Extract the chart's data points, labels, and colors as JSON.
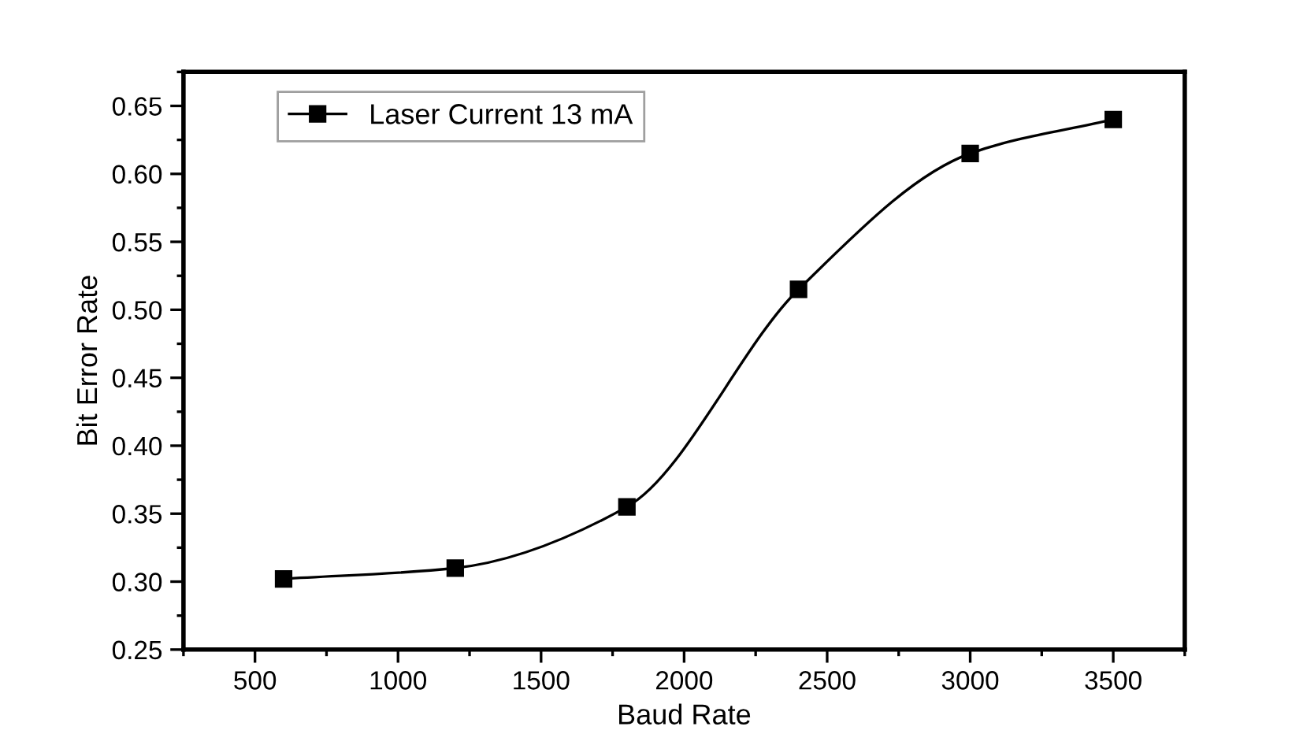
{
  "chart_data": {
    "type": "line",
    "xlabel": "Baud Rate",
    "ylabel": "Bit Error Rate",
    "x": [
      600,
      1200,
      1800,
      2400,
      3000,
      3500
    ],
    "series": [
      {
        "name": "Laser Current 13 mA",
        "color": "#000000",
        "values": [
          0.302,
          0.31,
          0.355,
          0.515,
          0.615,
          0.64
        ]
      }
    ],
    "xlim": [
      250,
      3750
    ],
    "xticks": [
      500,
      1000,
      1500,
      2000,
      2500,
      3000,
      3500
    ],
    "ylim": [
      0.25,
      0.675
    ],
    "yticks": [
      {
        "value": 0.25,
        "label": "0.25"
      },
      {
        "value": 0.3,
        "label": "0.30"
      },
      {
        "value": 0.35,
        "label": "0.35"
      },
      {
        "value": 0.4,
        "label": "0.40"
      },
      {
        "value": 0.45,
        "label": "0.45"
      },
      {
        "value": 0.5,
        "label": "0.50"
      },
      {
        "value": 0.55,
        "label": "0.55"
      },
      {
        "value": 0.6,
        "label": "0.60"
      },
      {
        "value": 0.65,
        "label": "0.65"
      }
    ],
    "marker": "square",
    "line_style": "solid",
    "grid": false,
    "legend": "top left"
  }
}
